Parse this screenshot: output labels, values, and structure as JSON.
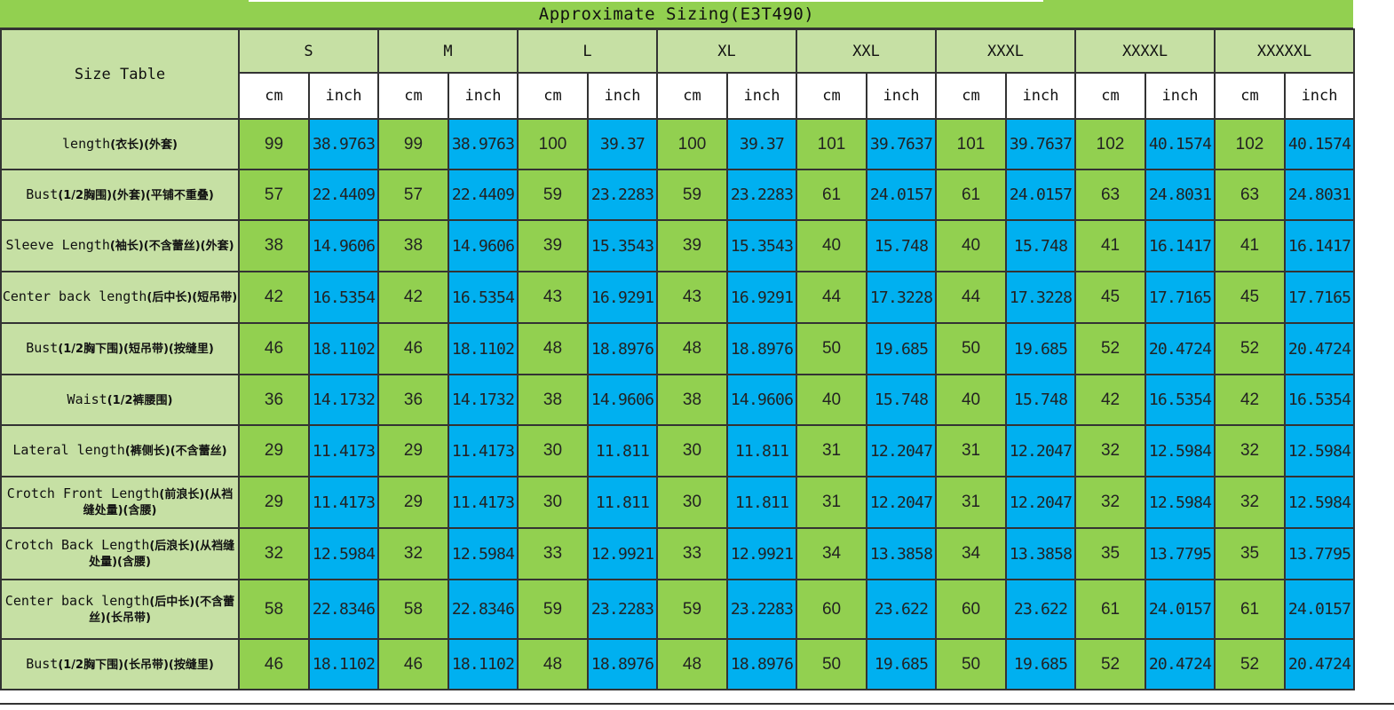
{
  "title": "Approximate Sizing(E3T490)",
  "corner_label": "Size Table",
  "sizes": [
    "S",
    "M",
    "L",
    "XL",
    "XXL",
    "XXXL",
    "XXXXL",
    "XXXXXL"
  ],
  "units": {
    "cm": "cm",
    "inch": "inch"
  },
  "rows": [
    {
      "en": "length",
      "zh": "(衣长)(外套)",
      "cm": [
        "99",
        "99",
        "100",
        "100",
        "101",
        "101",
        "102",
        "102"
      ],
      "inch": [
        "38.9763",
        "38.9763",
        "39.37",
        "39.37",
        "39.7637",
        "39.7637",
        "40.1574",
        "40.1574"
      ]
    },
    {
      "en": "Bust",
      "zh": "(1/2胸围)(外套)(平铺不重叠)",
      "cm": [
        "57",
        "57",
        "59",
        "59",
        "61",
        "61",
        "63",
        "63"
      ],
      "inch": [
        "22.4409",
        "22.4409",
        "23.2283",
        "23.2283",
        "24.0157",
        "24.0157",
        "24.8031",
        "24.8031"
      ]
    },
    {
      "en": "Sleeve Length",
      "zh": "(袖长)(不含蕾丝)(外套)",
      "cm": [
        "38",
        "38",
        "39",
        "39",
        "40",
        "40",
        "41",
        "41"
      ],
      "inch": [
        "14.9606",
        "14.9606",
        "15.3543",
        "15.3543",
        "15.748",
        "15.748",
        "16.1417",
        "16.1417"
      ]
    },
    {
      "en": "Center back length",
      "zh": "(后中长)(短吊带)",
      "cm": [
        "42",
        "42",
        "43",
        "43",
        "44",
        "44",
        "45",
        "45"
      ],
      "inch": [
        "16.5354",
        "16.5354",
        "16.9291",
        "16.9291",
        "17.3228",
        "17.3228",
        "17.7165",
        "17.7165"
      ]
    },
    {
      "en": "Bust",
      "zh": "(1/2胸下围)(短吊带)(按缝里)",
      "cm": [
        "46",
        "46",
        "48",
        "48",
        "50",
        "50",
        "52",
        "52"
      ],
      "inch": [
        "18.1102",
        "18.1102",
        "18.8976",
        "18.8976",
        "19.685",
        "19.685",
        "20.4724",
        "20.4724"
      ]
    },
    {
      "en": "Waist",
      "zh": "(1/2裤腰围)",
      "cm": [
        "36",
        "36",
        "38",
        "38",
        "40",
        "40",
        "42",
        "42"
      ],
      "inch": [
        "14.1732",
        "14.1732",
        "14.9606",
        "14.9606",
        "15.748",
        "15.748",
        "16.5354",
        "16.5354"
      ]
    },
    {
      "en": "Lateral length",
      "zh": "(裤侧长)(不含蕾丝)",
      "cm": [
        "29",
        "29",
        "30",
        "30",
        "31",
        "31",
        "32",
        "32"
      ],
      "inch": [
        "11.4173",
        "11.4173",
        "11.811",
        "11.811",
        "12.2047",
        "12.2047",
        "12.5984",
        "12.5984"
      ]
    },
    {
      "en": "Crotch Front Length",
      "zh": "(前浪长)(从裆缝处量)(含腰)",
      "cm": [
        "29",
        "29",
        "30",
        "30",
        "31",
        "31",
        "32",
        "32"
      ],
      "inch": [
        "11.4173",
        "11.4173",
        "11.811",
        "11.811",
        "12.2047",
        "12.2047",
        "12.5984",
        "12.5984"
      ]
    },
    {
      "en": "Crotch Back Length",
      "zh": "(后浪长)(从裆缝处量)(含腰)",
      "cm": [
        "32",
        "32",
        "33",
        "33",
        "34",
        "34",
        "35",
        "35"
      ],
      "inch": [
        "12.5984",
        "12.5984",
        "12.9921",
        "12.9921",
        "13.3858",
        "13.3858",
        "13.7795",
        "13.7795"
      ]
    },
    {
      "en": "Center back length",
      "zh": "(后中长)(不含蕾丝)(长吊带)",
      "cm": [
        "58",
        "58",
        "59",
        "59",
        "60",
        "60",
        "61",
        "61"
      ],
      "inch": [
        "22.8346",
        "22.8346",
        "23.2283",
        "23.2283",
        "23.622",
        "23.622",
        "24.0157",
        "24.0157"
      ]
    },
    {
      "en": "Bust",
      "zh": "(1/2胸下围)(长吊带)(按缝里)",
      "cm": [
        "46",
        "46",
        "48",
        "48",
        "50",
        "50",
        "52",
        "52"
      ],
      "inch": [
        "18.1102",
        "18.1102",
        "18.8976",
        "18.8976",
        "19.685",
        "19.685",
        "20.4724",
        "20.4724"
      ]
    }
  ],
  "colors": {
    "title_bg": "#92d050",
    "label_bg": "#c6e0a4",
    "cm_bg": "#92d050",
    "inch_bg": "#00b0f0",
    "unit_bg": "#ffffff"
  }
}
